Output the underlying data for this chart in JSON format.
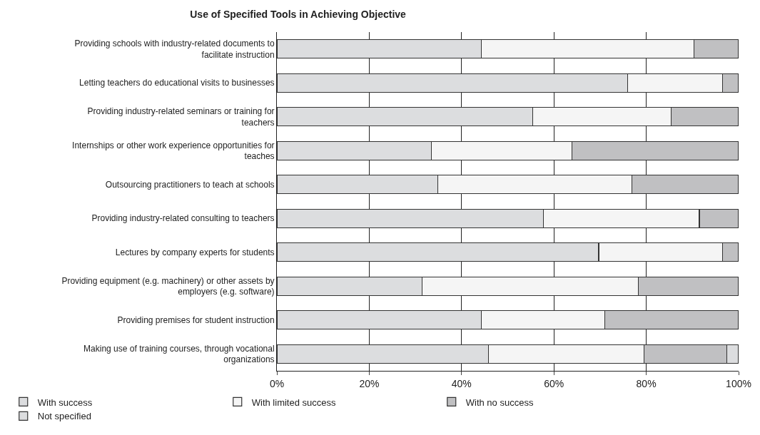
{
  "chart_data": {
    "type": "bar",
    "orientation": "horizontal",
    "stacked": true,
    "title": "Use of Specified Tools in Achieving Objective",
    "categories": [
      "Providing schools with industry-related documents to facilitate instruction",
      "Letting teachers do educational visits to businesses",
      "Providing industry-related seminars or training for teachers",
      "Internships or other work experience opportunities for teaches",
      "Outsourcing practitioners to teach at schools",
      "Providing industry-related consulting to teachers",
      "Lectures by company experts for students",
      "Providing equipment (e.g. machinery) or other assets by employers (e.g. software)",
      "Providing premises for student instruction",
      "Making use of training courses, through vocational organizations"
    ],
    "series": [
      {
        "name": "With success",
        "color": "#dcdddf",
        "values": [
          44.3,
          76.0,
          55.4,
          33.4,
          34.9,
          57.7,
          69.7,
          31.4,
          44.3,
          45.8
        ]
      },
      {
        "name": "With limited success",
        "color": "#f5f5f5",
        "values": [
          46.0,
          20.5,
          30.0,
          30.5,
          42.0,
          33.8,
          26.8,
          46.9,
          26.7,
          33.7
        ]
      },
      {
        "name": "With no success",
        "color": "#c0c0c2",
        "values": [
          9.7,
          3.5,
          14.6,
          36.1,
          23.1,
          8.5,
          3.5,
          21.7,
          29.0,
          17.9
        ]
      },
      {
        "name": "Not specified",
        "color": "#dcdddf",
        "values": [
          null,
          null,
          null,
          null,
          null,
          null,
          null,
          null,
          null,
          2.6
        ]
      }
    ],
    "xlim": [
      0,
      100
    ],
    "xticks": [
      {
        "value": 0,
        "label": "0%"
      },
      {
        "value": 20,
        "label": "20%"
      },
      {
        "value": 40,
        "label": "40%"
      },
      {
        "value": 60,
        "label": "60%"
      },
      {
        "value": 80,
        "label": "80%"
      },
      {
        "value": 100,
        "label": "100%"
      }
    ],
    "grid": "x",
    "legend": "bottom"
  }
}
